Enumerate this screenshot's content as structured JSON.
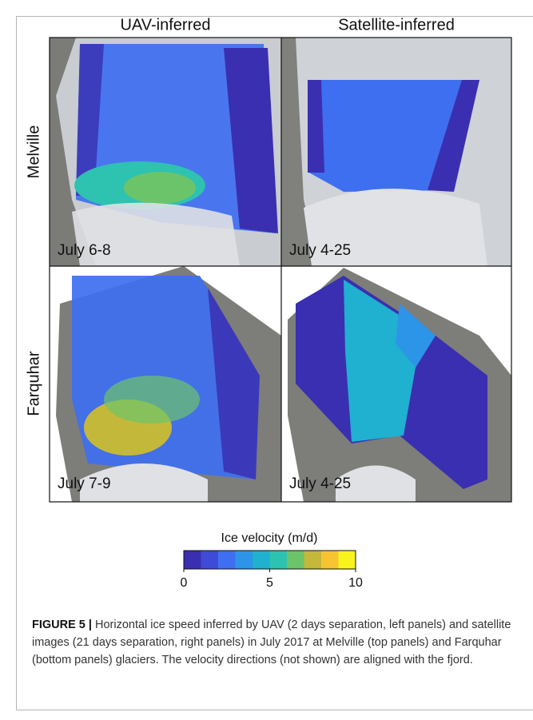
{
  "figure": {
    "column_titles": [
      "UAV-inferred",
      "Satellite-inferred"
    ],
    "row_titles": [
      "Melville",
      "Farquhar"
    ],
    "panel_labels": [
      [
        "July 6-8",
        "July 4-25"
      ],
      [
        "July 7-9",
        "July 4-25"
      ]
    ],
    "colorbar": {
      "label": "Ice velocity (m/d)",
      "colors": [
        "#3a2fb0",
        "#3f4bd8",
        "#3e6ff0",
        "#2c95e8",
        "#20b0d0",
        "#2ec2b0",
        "#6cc46a",
        "#c4b83a",
        "#f5c430",
        "#f8f31c"
      ],
      "lim": [
        0,
        10
      ],
      "ticks": [
        0,
        5,
        10
      ]
    }
  },
  "caption": {
    "label": "FIGURE 5 |",
    "text": "Horizontal ice speed inferred by UAV (2 days separation, left panels) and satellite images (21 days separation, right panels) in July 2017 at Melville (top panels) and Farquhar (bottom panels) glaciers. The velocity directions (not shown) are aligned with the fjord."
  }
}
